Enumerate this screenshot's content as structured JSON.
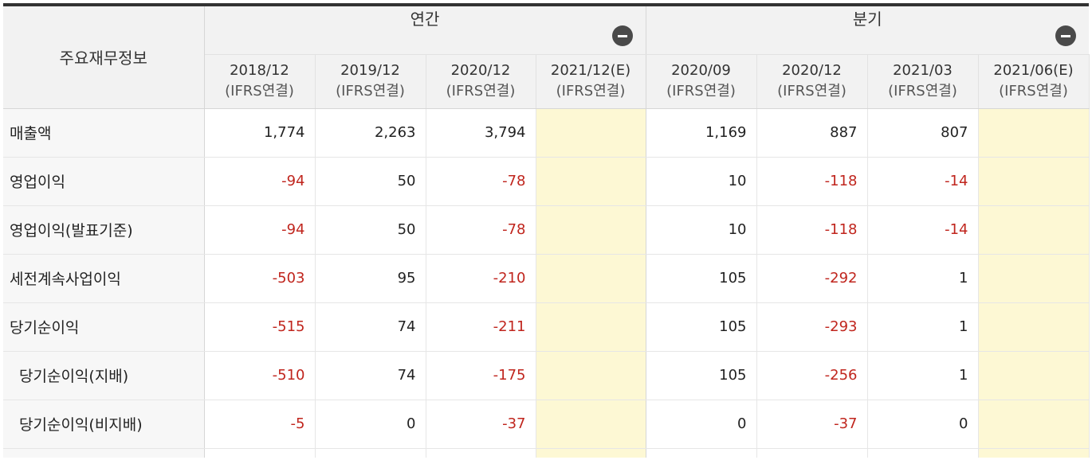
{
  "header": {
    "corner_label": "주요재무정보",
    "annual_label": "연간",
    "quarterly_label": "분기",
    "collapse_icon": "minus-circle-icon"
  },
  "periods": [
    {
      "date": "2018/12",
      "basis": "(IFRS연결)",
      "estimate": false
    },
    {
      "date": "2019/12",
      "basis": "(IFRS연결)",
      "estimate": false
    },
    {
      "date": "2020/12",
      "basis": "(IFRS연결)",
      "estimate": false
    },
    {
      "date": "2021/12(E)",
      "basis": "(IFRS연결)",
      "estimate": true
    },
    {
      "date": "2020/09",
      "basis": "(IFRS연결)",
      "estimate": false
    },
    {
      "date": "2020/12",
      "basis": "(IFRS연결)",
      "estimate": false
    },
    {
      "date": "2021/03",
      "basis": "(IFRS연결)",
      "estimate": false
    },
    {
      "date": "2021/06(E)",
      "basis": "(IFRS연결)",
      "estimate": true
    }
  ],
  "rows": [
    {
      "label": "매출액",
      "indent": false,
      "values": [
        "1,774",
        "2,263",
        "3,794",
        "",
        "1,169",
        "887",
        "807",
        ""
      ]
    },
    {
      "label": "영업이익",
      "indent": false,
      "values": [
        "-94",
        "50",
        "-78",
        "",
        "10",
        "-118",
        "-14",
        ""
      ]
    },
    {
      "label": "영업이익(발표기준)",
      "indent": false,
      "values": [
        "-94",
        "50",
        "-78",
        "",
        "10",
        "-118",
        "-14",
        ""
      ]
    },
    {
      "label": "세전계속사업이익",
      "indent": false,
      "values": [
        "-503",
        "95",
        "-210",
        "",
        "105",
        "-292",
        "1",
        ""
      ]
    },
    {
      "label": "당기순이익",
      "indent": false,
      "values": [
        "-515",
        "74",
        "-211",
        "",
        "105",
        "-293",
        "1",
        ""
      ]
    },
    {
      "label": "당기순이익(지배)",
      "indent": true,
      "values": [
        "-510",
        "74",
        "-175",
        "",
        "105",
        "-256",
        "1",
        ""
      ]
    },
    {
      "label": "당기순이익(비지배)",
      "indent": true,
      "values": [
        "-5",
        "0",
        "-37",
        "",
        "0",
        "-37",
        "0",
        ""
      ]
    }
  ],
  "colors": {
    "negative": "#c0251d",
    "estimate_bg": "#fdf8d4",
    "header_bg": "#f2f2f2"
  }
}
